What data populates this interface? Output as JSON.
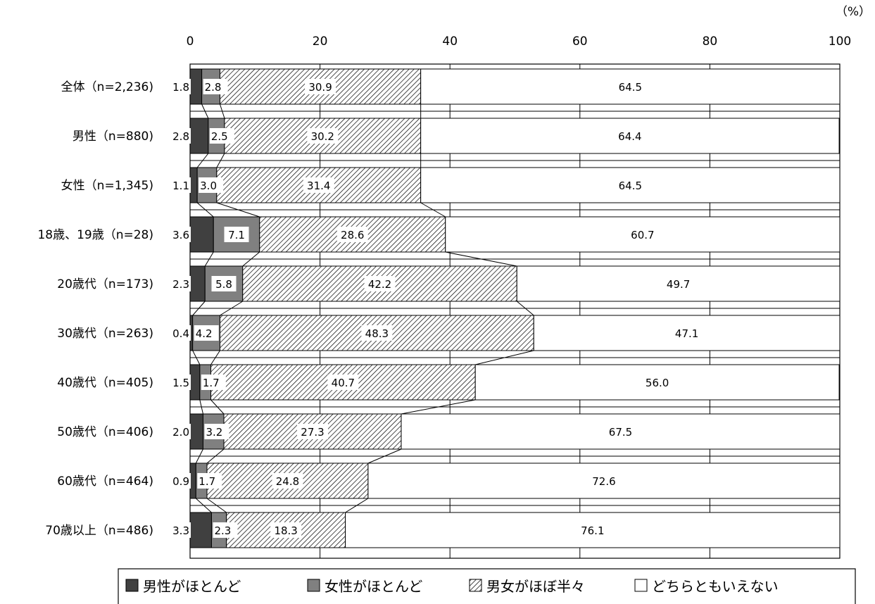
{
  "chart_data": {
    "type": "bar",
    "orientation": "horizontal",
    "stacked": true,
    "unit": "（%）",
    "xlim": [
      0,
      100
    ],
    "xticks": [
      "0",
      "20",
      "40",
      "60",
      "80",
      "100"
    ],
    "grid": true,
    "legend_position": "bottom",
    "categories": [
      "全体（n=2,236)",
      "男性（n=880)",
      "女性（n=1,345)",
      "18歳、19歳（n=28)",
      "20歳代（n=173)",
      "30歳代（n=263)",
      "40歳代（n=405)",
      "50歳代（n=406)",
      "60歳代（n=464)",
      "70歳以上（n=486)"
    ],
    "series": [
      {
        "name": "男性がほとんど",
        "color": "#404040",
        "pattern": "solid",
        "values": [
          1.8,
          2.8,
          1.1,
          3.6,
          2.3,
          0.4,
          1.5,
          2.0,
          0.9,
          3.3
        ],
        "labels": [
          "1.8",
          "2.8",
          "1.1",
          "3.6",
          "2.3",
          "0.4",
          "1.5",
          "2.0",
          "0.9",
          "3.3"
        ]
      },
      {
        "name": "女性がほとんど",
        "color": "#808080",
        "pattern": "solid",
        "values": [
          2.8,
          2.5,
          3.0,
          7.1,
          5.8,
          4.2,
          1.7,
          3.2,
          1.7,
          2.3
        ],
        "labels": [
          "2.8",
          "2.5",
          "3.0",
          "7.1",
          "5.8",
          "4.2",
          "1.7",
          "3.2",
          "1.7",
          "2.3"
        ]
      },
      {
        "name": "男女がほぼ半々",
        "color": "#000000",
        "pattern": "diagonal-hatch",
        "values": [
          30.9,
          30.2,
          31.4,
          28.6,
          42.2,
          48.3,
          40.7,
          27.3,
          24.8,
          18.3
        ],
        "labels": [
          "30.9",
          "30.2",
          "31.4",
          "28.6",
          "42.2",
          "48.3",
          "40.7",
          "27.3",
          "24.8",
          "18.3"
        ]
      },
      {
        "name": "どちらともいえない",
        "color": "#ffffff",
        "pattern": "solid",
        "values": [
          64.5,
          64.4,
          64.5,
          60.7,
          49.7,
          47.1,
          56.0,
          67.5,
          72.6,
          76.1
        ],
        "labels": [
          "64.5",
          "64.4",
          "64.5",
          "60.7",
          "49.7",
          "47.1",
          "56.0",
          "67.5",
          "72.6",
          "76.1"
        ]
      }
    ]
  }
}
